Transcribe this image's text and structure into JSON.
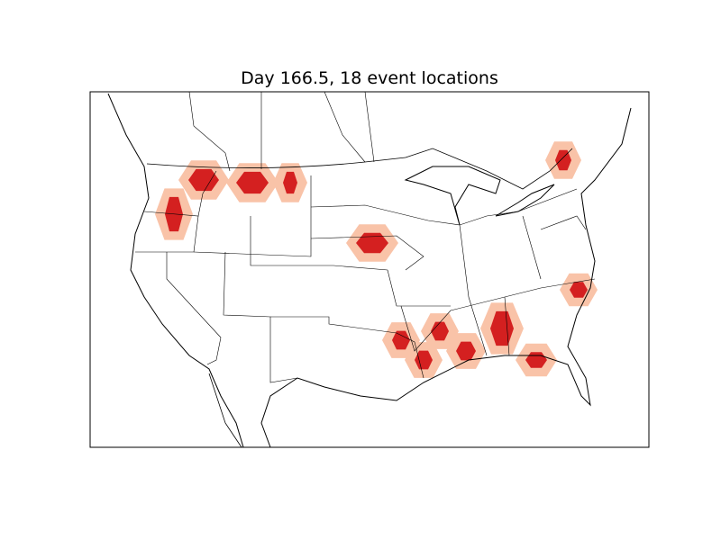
{
  "title": "Day 166.5, 18 event locations",
  "event_count": 18,
  "colors": {
    "event_core": "#d42020",
    "event_halo": "#f9c3a8",
    "coastline": "#000000",
    "background": "#ffffff"
  },
  "map": {
    "region": "North America (continental US)",
    "layers": [
      "coastlines",
      "country borders",
      "state/province borders",
      "event density"
    ]
  }
}
